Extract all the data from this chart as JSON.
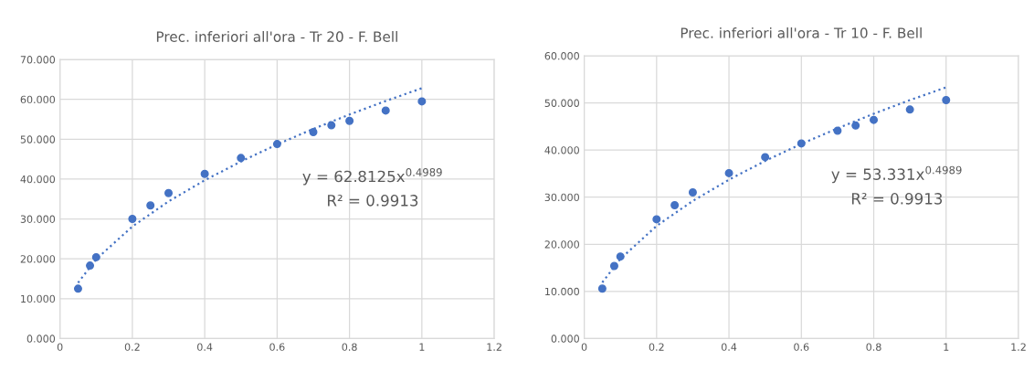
{
  "chart_data": [
    {
      "type": "scatter",
      "title": "Prec. inferiori all'ora - Tr 20 - F. Bell",
      "series": [
        {
          "color": "#4472c4",
          "marker": "circle",
          "x": [
            0.05,
            0.083,
            0.1,
            0.2,
            0.25,
            0.3,
            0.4,
            0.5,
            0.6,
            0.7,
            0.75,
            0.8,
            0.9,
            1
          ],
          "values": [
            12.5,
            18.3,
            20.4,
            30.0,
            33.4,
            36.5,
            41.3,
            45.3,
            48.8,
            51.8,
            53.5,
            54.6,
            57.2,
            59.5
          ]
        },
        {
          "type": "line",
          "color": "#4472c4",
          "marker": "none",
          "line_style": "dotted",
          "x": [
            0.05,
            0.1,
            0.2,
            0.3,
            0.4,
            0.5,
            0.6,
            0.7,
            0.8,
            0.9,
            1
          ],
          "values": [
            14.0,
            19.9,
            28.1,
            34.4,
            39.7,
            44.4,
            48.7,
            52.6,
            56.2,
            59.6,
            62.8
          ]
        }
      ],
      "annotations": [
        "y = 62.8125x$^{0.4989}$",
        "R² = 0.9913"
      ],
      "xlim": [
        0,
        1.2
      ],
      "xticks": [
        0,
        0.2,
        0.4,
        0.6,
        0.8,
        1,
        1.2
      ],
      "ylim": [
        0,
        70
      ],
      "yticks": [
        {
          "value": 0,
          "label": "0.000"
        },
        {
          "value": 10,
          "label": "10.000"
        },
        {
          "value": 20,
          "label": "20.000"
        },
        {
          "value": 30,
          "label": "30.000"
        },
        {
          "value": 40,
          "label": "40.000"
        },
        {
          "value": 50,
          "label": "50.000"
        },
        {
          "value": 60,
          "label": "60.000"
        },
        {
          "value": 70,
          "label": "70.000"
        }
      ],
      "grid": true,
      "legend": false
    },
    {
      "type": "scatter",
      "title": "Prec. inferiori all'ora - Tr 10 - F. Bell",
      "series": [
        {
          "color": "#4472c4",
          "marker": "circle",
          "x": [
            0.05,
            0.083,
            0.1,
            0.2,
            0.25,
            0.3,
            0.4,
            0.5,
            0.6,
            0.7,
            0.75,
            0.8,
            0.9,
            1
          ],
          "values": [
            10.6,
            15.4,
            17.4,
            25.3,
            28.3,
            31.0,
            35.1,
            38.5,
            41.4,
            44.1,
            45.2,
            46.4,
            48.6,
            50.6
          ]
        },
        {
          "type": "line",
          "color": "#4472c4",
          "marker": "none",
          "line_style": "dotted",
          "x": [
            0.05,
            0.1,
            0.2,
            0.3,
            0.4,
            0.5,
            0.6,
            0.7,
            0.8,
            0.9,
            1
          ],
          "values": [
            11.9,
            16.9,
            23.9,
            29.2,
            33.7,
            37.7,
            41.3,
            44.6,
            47.7,
            50.6,
            53.3
          ]
        }
      ],
      "annotations": [
        "y = 53.331x$^{0.4989}$",
        "R² = 0.9913"
      ],
      "xlim": [
        0,
        1.2
      ],
      "xticks": [
        0,
        0.2,
        0.4,
        0.6,
        0.8,
        1,
        1.2
      ],
      "ylim": [
        0,
        60
      ],
      "yticks": [
        {
          "value": 0,
          "label": "0.000"
        },
        {
          "value": 10,
          "label": "10.000"
        },
        {
          "value": 20,
          "label": "20.000"
        },
        {
          "value": 30,
          "label": "30.000"
        },
        {
          "value": 40,
          "label": "40.000"
        },
        {
          "value": 50,
          "label": "50.000"
        },
        {
          "value": 60,
          "label": "60.000"
        }
      ],
      "grid": true,
      "legend": false
    }
  ]
}
